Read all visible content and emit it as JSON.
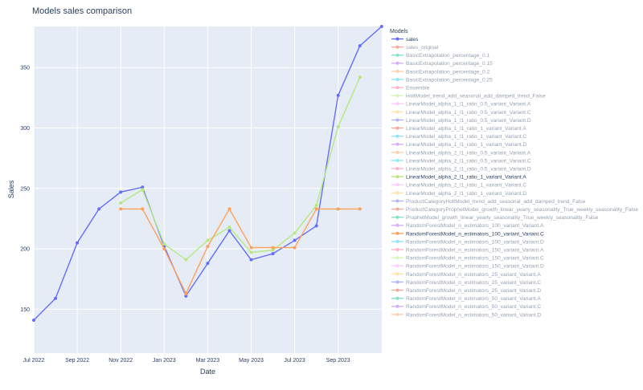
{
  "colors": {
    "plot_bg": "#e5ecf6",
    "grid": "#ffffff",
    "text": "#2a3f5f",
    "palette": [
      "#636efa",
      "#ef553b",
      "#00cc96",
      "#ab63fa",
      "#ffa15a",
      "#19d3f3",
      "#ff6692",
      "#b6e880",
      "#ff97ff",
      "#fecb52"
    ]
  },
  "chart_data": {
    "type": "line",
    "title": "Models sales comparison",
    "xlabel": "Date",
    "ylabel": "Sales",
    "x_ticks": [
      "Jul 2022",
      "Sep 2022",
      "Nov 2022",
      "Jan 2023",
      "Mar 2023",
      "May 2023",
      "Jul 2023",
      "Sep 2023"
    ],
    "y_ticks": [
      150,
      200,
      250,
      300,
      350
    ],
    "xlim": [
      "2022-07-01",
      "2023-11-01"
    ],
    "ylim": [
      125,
      385
    ],
    "grid": true,
    "legend_title": "Models",
    "legend_position": "right",
    "series": [
      {
        "name": "sales",
        "color": "#636efa",
        "visible": true,
        "x": [
          "2022-07-01",
          "2022-08-01",
          "2022-09-01",
          "2022-10-01",
          "2022-11-01",
          "2022-12-01",
          "2023-01-01",
          "2023-02-01",
          "2023-03-01",
          "2023-04-01",
          "2023-05-01",
          "2023-06-01",
          "2023-07-01",
          "2023-08-01",
          "2023-09-01",
          "2023-10-01",
          "2023-11-01"
        ],
        "y": [
          141,
          159,
          205,
          233,
          247,
          251,
          202,
          161,
          188,
          215,
          191,
          196,
          207,
          219,
          327,
          368,
          384
        ]
      },
      {
        "name": "sales_original",
        "color": "#ef553b",
        "visible": false
      },
      {
        "name": "BasicExtrapolation_percentage_0.1",
        "color": "#00cc96",
        "visible": false
      },
      {
        "name": "BasicExtrapolation_percentage_0.15",
        "color": "#ab63fa",
        "visible": false
      },
      {
        "name": "BasicExtrapolation_percentage_0.2",
        "color": "#ffa15a",
        "visible": false
      },
      {
        "name": "BasicExtrapolation_percentage_0.25",
        "color": "#19d3f3",
        "visible": false
      },
      {
        "name": "Ensemble",
        "color": "#ff6692",
        "visible": false
      },
      {
        "name": "HoltModel_trend_add_seasonal_add_damped_trend_False",
        "color": "#b6e880",
        "visible": false
      },
      {
        "name": "LinearModel_alpha_1_l1_ratio_0.5_variant_Variant.A",
        "color": "#ff97ff",
        "visible": false
      },
      {
        "name": "LinearModel_alpha_1_l1_ratio_0.5_variant_Variant.C",
        "color": "#fecb52",
        "visible": false
      },
      {
        "name": "LinearModel_alpha_1_l1_ratio_0.5_variant_Variant.D",
        "color": "#636efa",
        "visible": false
      },
      {
        "name": "LinearModel_alpha_1_l1_ratio_1_variant_Variant.A",
        "color": "#ef553b",
        "visible": false
      },
      {
        "name": "LinearModel_alpha_1_l1_ratio_1_variant_Variant.C",
        "color": "#19d3f3",
        "visible": false
      },
      {
        "name": "LinearModel_alpha_1_l1_ratio_1_variant_Variant.D",
        "color": "#ab63fa",
        "visible": false
      },
      {
        "name": "LinearModel_alpha_2_l1_ratio_0.5_variant_Variant.A",
        "color": "#ffa15a",
        "visible": false
      },
      {
        "name": "LinearModel_alpha_2_l1_ratio_0.5_variant_Variant.C",
        "color": "#19d3f3",
        "visible": false
      },
      {
        "name": "LinearModel_alpha_2_l1_ratio_0.5_variant_Variant.D",
        "color": "#ff6692",
        "visible": false
      },
      {
        "name": "LinearModel_alpha_2_l1_ratio_1_variant_Variant.A",
        "color": "#b6e880",
        "visible": true,
        "x": [
          "2022-11-01",
          "2022-12-01",
          "2023-01-01",
          "2023-02-01",
          "2023-03-01",
          "2023-04-01",
          "2023-05-01",
          "2023-06-01",
          "2023-07-01",
          "2023-08-01",
          "2023-09-01",
          "2023-10-01"
        ],
        "y": [
          238,
          249,
          204,
          191,
          207,
          218,
          197,
          199,
          213,
          236,
          301,
          342
        ]
      },
      {
        "name": "LinearModel_alpha_2_l1_ratio_1_variant_Variant.C",
        "color": "#ff97ff",
        "visible": false
      },
      {
        "name": "LinearModel_alpha_2_l1_ratio_1_variant_Variant.D",
        "color": "#fecb52",
        "visible": false
      },
      {
        "name": "ProductCategoryHoltModel_trend_add_seasonal_add_damped_trend_False",
        "color": "#636efa",
        "visible": false
      },
      {
        "name": "ProductCategoryProphetModel_growth_linear_yearly_seasonality_True_weekly_seasonality_False",
        "color": "#ef553b",
        "visible": false
      },
      {
        "name": "ProphetModel_growth_linear_yearly_seasonality_True_weekly_seasonality_False",
        "color": "#00cc96",
        "visible": false
      },
      {
        "name": "RandomForestModel_n_estimators_100_variant_Variant.A",
        "color": "#ab63fa",
        "visible": false
      },
      {
        "name": "RandomForestModel_n_estimators_100_variant_Variant.C",
        "color": "#ffa15a",
        "visible": true,
        "x": [
          "2022-11-01",
          "2022-12-01",
          "2023-01-01",
          "2023-02-01",
          "2023-03-01",
          "2023-04-01",
          "2023-05-01",
          "2023-06-01",
          "2023-07-01",
          "2023-08-01",
          "2023-09-01",
          "2023-10-01"
        ],
        "y": [
          233,
          233,
          200,
          163,
          202,
          233,
          201,
          201,
          201,
          233,
          233,
          233
        ]
      },
      {
        "name": "RandomForestModel_n_estimators_100_variant_Variant.D",
        "color": "#19d3f3",
        "visible": false
      },
      {
        "name": "RandomForestModel_n_estimators_150_variant_Variant.A",
        "color": "#ff6692",
        "visible": false
      },
      {
        "name": "RandomForestModel_n_estimators_150_variant_Variant.C",
        "color": "#b6e880",
        "visible": false
      },
      {
        "name": "RandomForestModel_n_estimators_150_variant_Variant.D",
        "color": "#ff97ff",
        "visible": false
      },
      {
        "name": "RandomForestModel_n_estimators_25_variant_Variant.A",
        "color": "#fecb52",
        "visible": false
      },
      {
        "name": "RandomForestModel_n_estimators_25_variant_Variant.C",
        "color": "#636efa",
        "visible": false
      },
      {
        "name": "RandomForestModel_n_estimators_25_variant_Variant.D",
        "color": "#ef553b",
        "visible": false
      },
      {
        "name": "RandomForestModel_n_estimators_50_variant_Variant.A",
        "color": "#00cc96",
        "visible": false
      },
      {
        "name": "RandomForestModel_n_estimators_50_variant_Variant.C",
        "color": "#ab63fa",
        "visible": false
      },
      {
        "name": "RandomForestModel_n_estimators_50_variant_Variant.D",
        "color": "#ffa15a",
        "visible": false
      }
    ]
  }
}
